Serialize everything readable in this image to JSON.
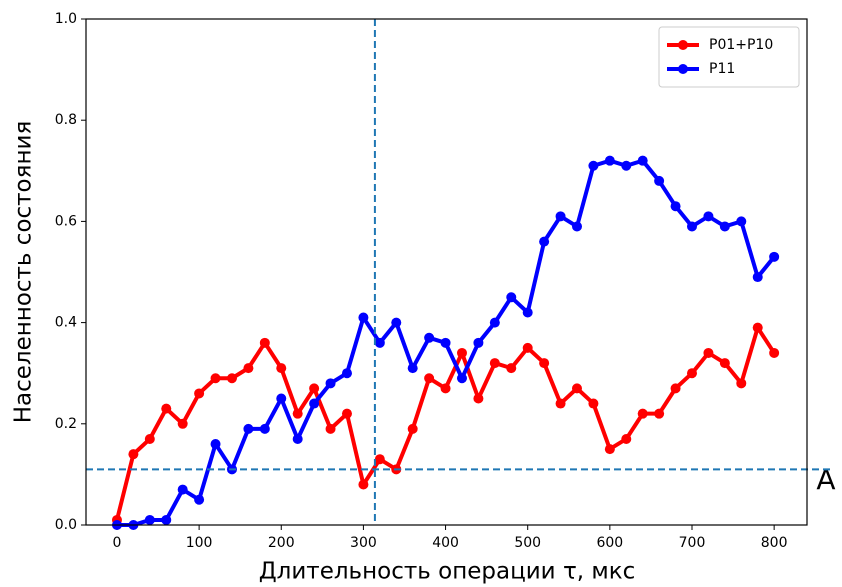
{
  "chart_data": {
    "type": "line",
    "xlabel": "Длительность операции τ, мкс",
    "ylabel": "Населенность состояния",
    "annotation": "A",
    "x": [
      0,
      20,
      40,
      60,
      80,
      100,
      120,
      140,
      160,
      180,
      200,
      220,
      240,
      260,
      280,
      300,
      320,
      340,
      360,
      380,
      400,
      420,
      440,
      460,
      480,
      500,
      520,
      540,
      560,
      580,
      600,
      620,
      640,
      660,
      680,
      700,
      720,
      740,
      760,
      780,
      800
    ],
    "series": [
      {
        "name": "P01+P10",
        "color": "#ff0000",
        "values": [
          0.01,
          0.14,
          0.17,
          0.23,
          0.2,
          0.26,
          0.29,
          0.29,
          0.31,
          0.36,
          0.31,
          0.22,
          0.27,
          0.19,
          0.22,
          0.08,
          0.13,
          0.11,
          0.19,
          0.29,
          0.27,
          0.34,
          0.25,
          0.32,
          0.31,
          0.35,
          0.32,
          0.24,
          0.27,
          0.24,
          0.15,
          0.17,
          0.22,
          0.22,
          0.27,
          0.3,
          0.34,
          0.32,
          0.28,
          0.39,
          0.34
        ]
      },
      {
        "name": "P11",
        "color": "#0000ff",
        "values": [
          0.0,
          0.0,
          0.01,
          0.01,
          0.07,
          0.05,
          0.16,
          0.11,
          0.19,
          0.19,
          0.25,
          0.17,
          0.24,
          0.28,
          0.3,
          0.41,
          0.36,
          0.4,
          0.31,
          0.37,
          0.36,
          0.29,
          0.36,
          0.4,
          0.45,
          0.42,
          0.56,
          0.61,
          0.59,
          0.71,
          0.72,
          0.71,
          0.72,
          0.68,
          0.63,
          0.59,
          0.61,
          0.59,
          0.6,
          0.49,
          0.53
        ]
      }
    ],
    "xlim": [
      -37.7,
      840
    ],
    "ylim": [
      0,
      1
    ],
    "xticks": [
      0,
      100,
      200,
      300,
      400,
      500,
      600,
      700,
      800
    ],
    "yticks": [
      {
        "value": 0,
        "label": "0.0"
      },
      {
        "value": 0.2,
        "label": "0.2"
      },
      {
        "value": 0.4,
        "label": "0.4"
      },
      {
        "value": 0.6,
        "label": "0.6"
      },
      {
        "value": 0.8,
        "label": "0.8"
      },
      {
        "value": 1,
        "label": "1.0"
      }
    ],
    "vlines": [
      314
    ],
    "hlines": [
      0.11
    ],
    "guide_color": "#1f77b4",
    "legend": "upper right"
  }
}
